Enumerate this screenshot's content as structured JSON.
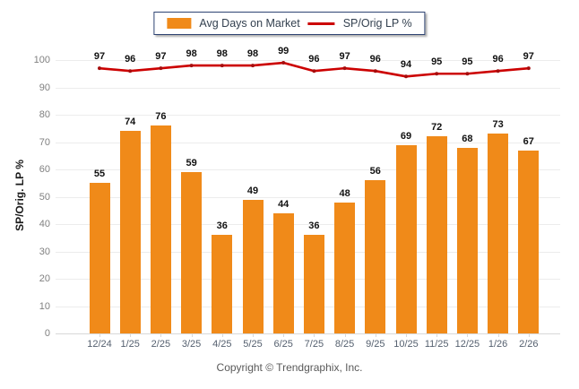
{
  "chart_data": {
    "type": "bar+line",
    "categories": [
      "12/24",
      "1/25",
      "2/25",
      "3/25",
      "4/25",
      "5/25",
      "6/25",
      "7/25",
      "8/25",
      "9/25",
      "10/25",
      "11/25",
      "12/25",
      "1/26",
      "2/26"
    ],
    "series": [
      {
        "name": "Avg Days on Market",
        "type": "bar",
        "color": "#F08A19",
        "values": [
          55,
          74,
          76,
          59,
          36,
          49,
          44,
          36,
          48,
          56,
          69,
          72,
          68,
          73,
          67
        ]
      },
      {
        "name": "SP/Orig LP %",
        "type": "line",
        "color": "#CC0000",
        "marker_color": "#A60D0D",
        "values": [
          97,
          96,
          97,
          98,
          98,
          98,
          99,
          96,
          97,
          96,
          94,
          95,
          95,
          96,
          97
        ]
      }
    ],
    "title": "",
    "xlabel": "",
    "ylabel": "SP/Orig. LP %",
    "ylim": [
      0,
      100
    ],
    "yticks": [
      0,
      10,
      20,
      30,
      40,
      50,
      60,
      70,
      80,
      90,
      100
    ],
    "grid": true,
    "legend_position": "top-center",
    "data_labels": true
  },
  "legend": {
    "bar_label": "Avg Days on Market",
    "line_label": "SP/Orig LP %"
  },
  "footer": {
    "copyright": "Copyright © Trendgraphix, Inc."
  },
  "colors": {
    "bar": "#F08A19",
    "line": "#CC0000",
    "marker": "#A60D0D",
    "gridline": "#ECECEC",
    "axis_line": "#D8D8D8",
    "ytick_text": "#808080",
    "xtick_text": "#55606F",
    "legend_border": "#2F4473",
    "footer_text": "#595959"
  }
}
